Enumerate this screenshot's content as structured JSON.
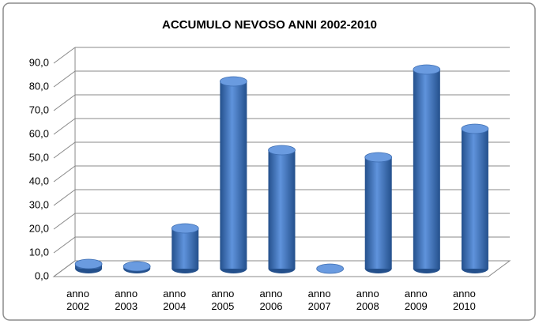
{
  "chart_data": {
    "type": "bar",
    "title": "ACCUMULO NEVOSO ANNI 2002-2010",
    "categories": [
      "anno 2002",
      "anno 2003",
      "anno 2004",
      "anno 2005",
      "anno 2006",
      "anno 2007",
      "anno 2008",
      "anno 2009",
      "anno 2010"
    ],
    "values": [
      2,
      1,
      17,
      79,
      50,
      0,
      47,
      84,
      59
    ],
    "color": "#4a7cc4",
    "ylim": [
      0,
      90
    ],
    "yticks": [
      {
        "value": 0,
        "label": "0,0"
      },
      {
        "value": 10,
        "label": "10,0"
      },
      {
        "value": 20,
        "label": "20,0"
      },
      {
        "value": 30,
        "label": "30,0"
      },
      {
        "value": 40,
        "label": "40,0"
      },
      {
        "value": 50,
        "label": "50,0"
      },
      {
        "value": 60,
        "label": "60,0"
      },
      {
        "value": 70,
        "label": "70,0"
      },
      {
        "value": 80,
        "label": "80,0"
      },
      {
        "value": 90,
        "label": "90,0"
      }
    ],
    "grid": true
  }
}
